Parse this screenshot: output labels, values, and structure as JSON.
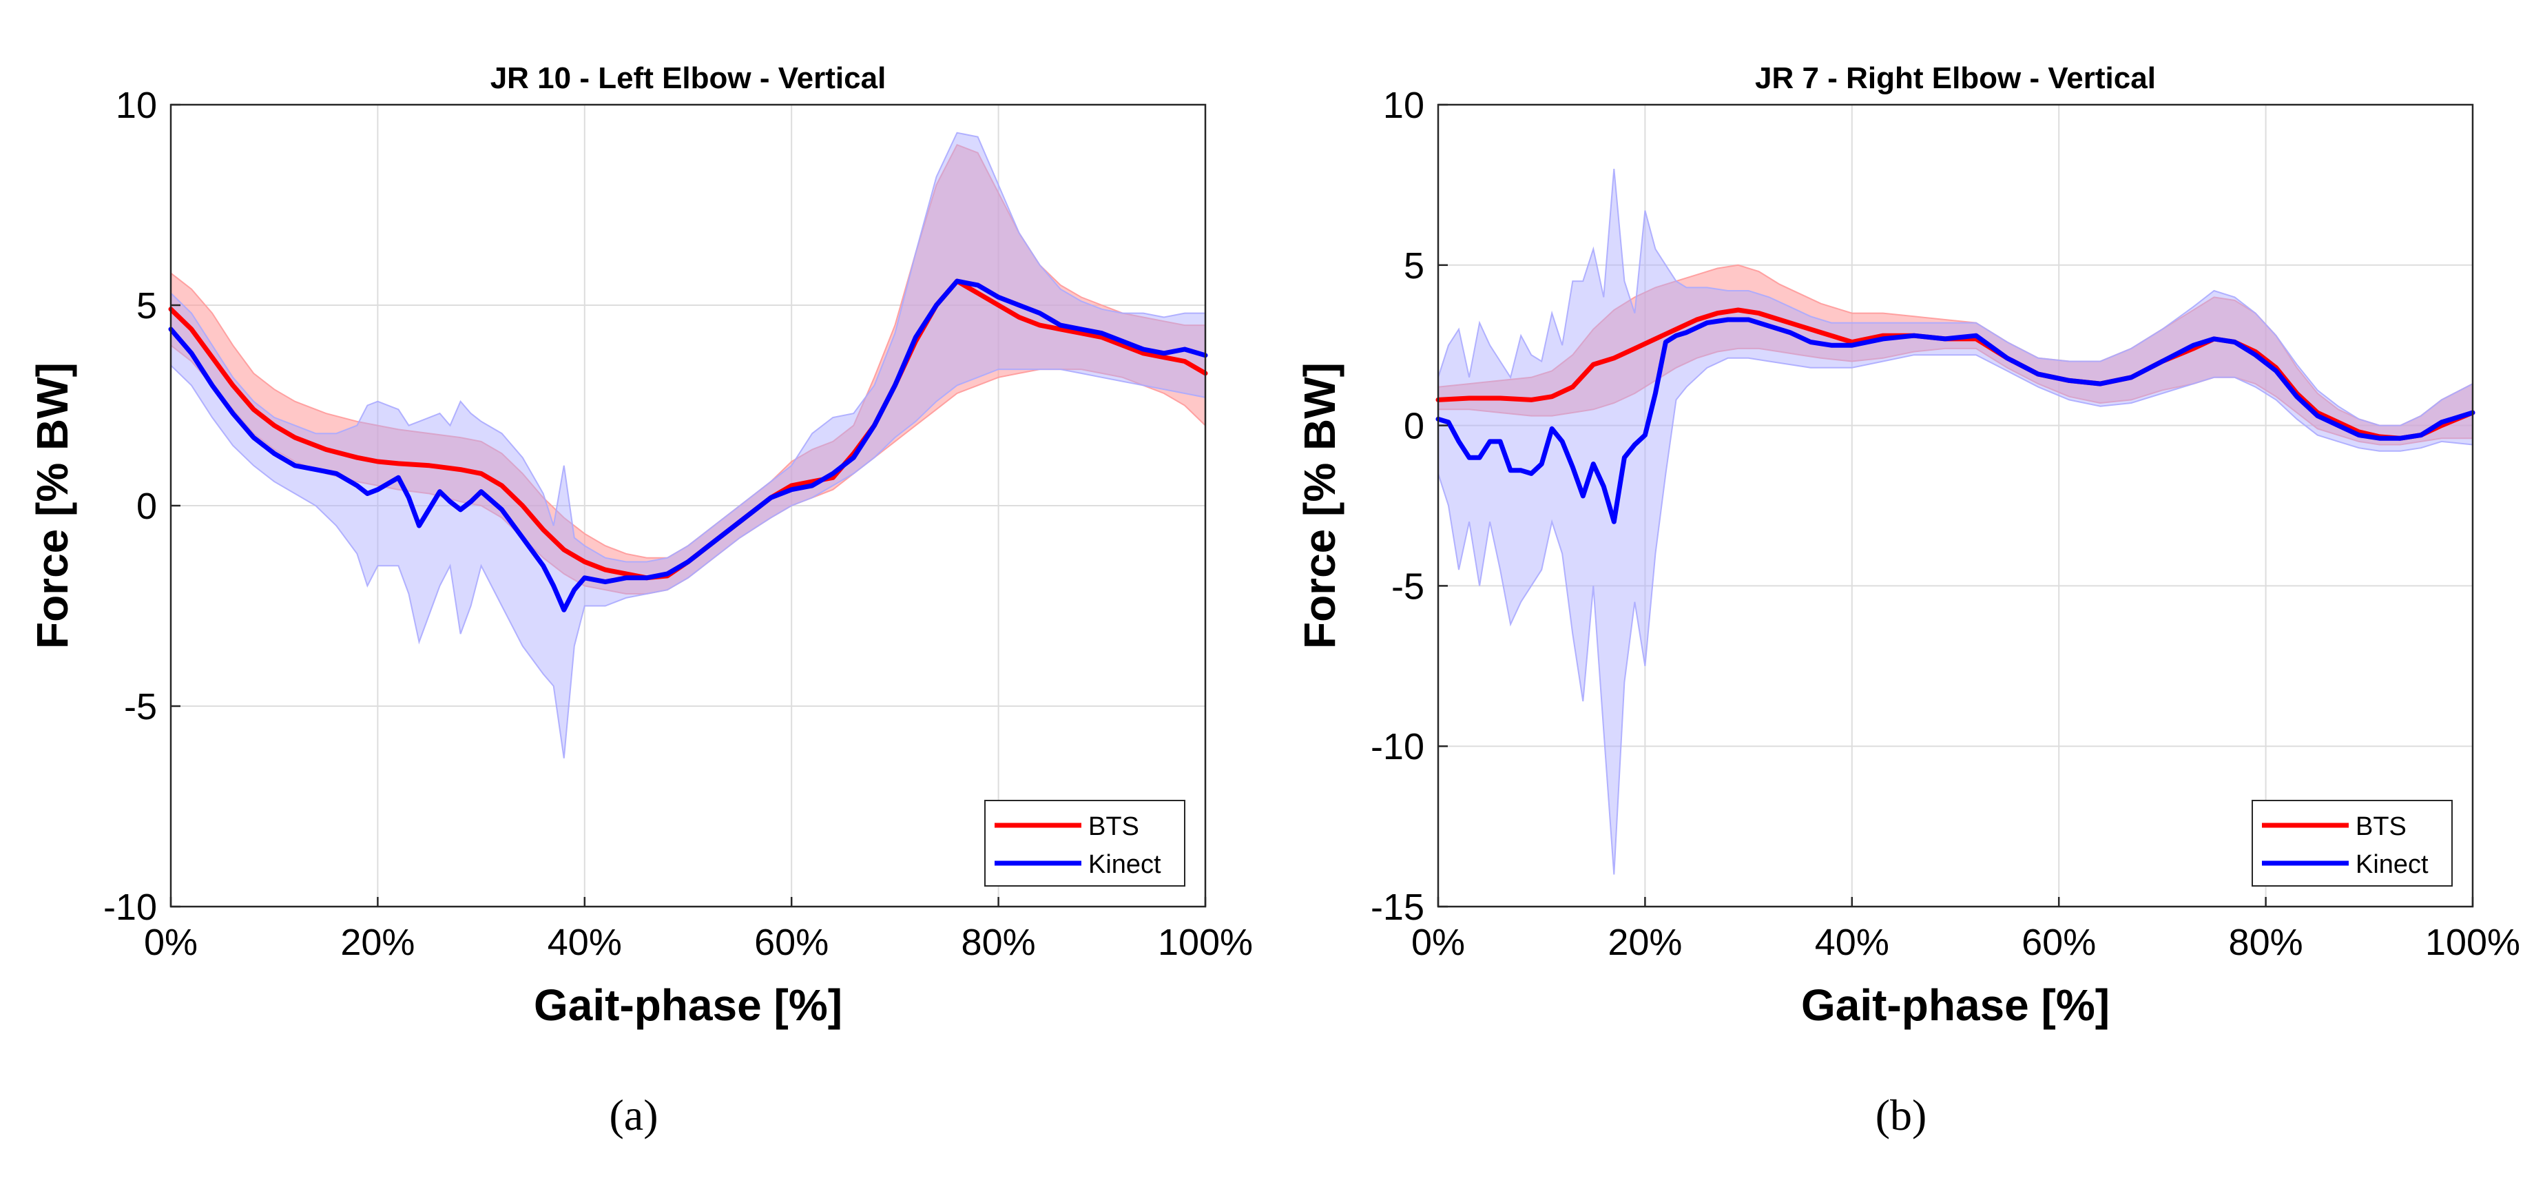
{
  "chart_data": [
    {
      "type": "line",
      "panel_label": "(a)",
      "title": "JR 10 - Left Elbow - Vertical",
      "xlabel": "Gait-phase [%]",
      "ylabel": "Force [% BW]",
      "xlim": [
        0,
        100
      ],
      "ylim": [
        -10,
        10
      ],
      "xticks": [
        0,
        20,
        40,
        60,
        80,
        100
      ],
      "xtick_labels": [
        "0%",
        "20%",
        "40%",
        "60%",
        "80%",
        "100%"
      ],
      "yticks": [
        -10,
        -5,
        0,
        5,
        10
      ],
      "ytick_labels": [
        "-10",
        "-5",
        "0",
        "5",
        "10"
      ],
      "grid": true,
      "legend_position": "bottom-right",
      "series": [
        {
          "name": "BTS",
          "color": "#ff0000",
          "band_color": "#ff9999",
          "x": [
            0,
            2,
            4,
            6,
            8,
            10,
            12,
            15,
            18,
            20,
            22,
            25,
            28,
            30,
            32,
            34,
            36,
            38,
            40,
            42,
            44,
            46,
            48,
            50,
            52,
            55,
            58,
            60,
            62,
            64,
            66,
            68,
            70,
            72,
            74,
            76,
            78,
            80,
            82,
            84,
            86,
            88,
            90,
            92,
            94,
            96,
            98,
            100
          ],
          "values": [
            4.9,
            4.4,
            3.7,
            3.0,
            2.4,
            2.0,
            1.7,
            1.4,
            1.2,
            1.1,
            1.05,
            1.0,
            0.9,
            0.8,
            0.5,
            0.0,
            -0.6,
            -1.1,
            -1.4,
            -1.6,
            -1.7,
            -1.8,
            -1.75,
            -1.4,
            -1.0,
            -0.4,
            0.2,
            0.5,
            0.6,
            0.7,
            1.3,
            2.0,
            3.0,
            4.1,
            5.0,
            5.6,
            5.3,
            5.0,
            4.7,
            4.5,
            4.4,
            4.3,
            4.2,
            4.0,
            3.8,
            3.7,
            3.6,
            3.3
          ],
          "lower": [
            4.0,
            3.6,
            3.0,
            2.4,
            1.8,
            1.4,
            1.1,
            0.8,
            0.6,
            0.5,
            0.4,
            0.3,
            0.1,
            0.0,
            -0.3,
            -0.8,
            -1.3,
            -1.7,
            -2.0,
            -2.1,
            -2.2,
            -2.2,
            -2.1,
            -1.8,
            -1.4,
            -0.8,
            -0.3,
            0.0,
            0.2,
            0.4,
            0.8,
            1.2,
            1.6,
            2.0,
            2.4,
            2.8,
            3.0,
            3.2,
            3.3,
            3.4,
            3.4,
            3.4,
            3.3,
            3.2,
            3.0,
            2.8,
            2.5,
            2.0
          ],
          "upper": [
            5.8,
            5.4,
            4.8,
            4.0,
            3.3,
            2.9,
            2.6,
            2.3,
            2.1,
            2.0,
            1.9,
            1.8,
            1.7,
            1.6,
            1.3,
            0.8,
            0.2,
            -0.3,
            -0.7,
            -1.0,
            -1.2,
            -1.3,
            -1.3,
            -1.0,
            -0.6,
            0.0,
            0.6,
            1.1,
            1.4,
            1.6,
            2.0,
            3.2,
            4.5,
            6.3,
            8.0,
            9.0,
            8.8,
            7.8,
            6.8,
            6.0,
            5.5,
            5.2,
            5.0,
            4.8,
            4.7,
            4.6,
            4.5,
            4.5
          ]
        },
        {
          "name": "Kinect",
          "color": "#0000ff",
          "band_color": "#aaaaff",
          "x": [
            0,
            2,
            4,
            6,
            8,
            10,
            12,
            14,
            16,
            18,
            19,
            20,
            22,
            23,
            24,
            26,
            27,
            28,
            29,
            30,
            32,
            34,
            36,
            37,
            38,
            39,
            40,
            42,
            44,
            46,
            48,
            50,
            52,
            55,
            58,
            60,
            62,
            64,
            66,
            68,
            70,
            72,
            74,
            76,
            78,
            80,
            82,
            84,
            86,
            88,
            90,
            92,
            94,
            96,
            98,
            100
          ],
          "values": [
            4.4,
            3.8,
            3.0,
            2.3,
            1.7,
            1.3,
            1.0,
            0.9,
            0.8,
            0.5,
            0.3,
            0.4,
            0.7,
            0.2,
            -0.5,
            0.35,
            0.1,
            -0.1,
            0.1,
            0.35,
            -0.1,
            -0.8,
            -1.5,
            -2.0,
            -2.6,
            -2.1,
            -1.8,
            -1.9,
            -1.8,
            -1.8,
            -1.7,
            -1.4,
            -1.0,
            -0.4,
            0.2,
            0.4,
            0.5,
            0.8,
            1.2,
            2.0,
            3.0,
            4.2,
            5.0,
            5.6,
            5.5,
            5.2,
            5.0,
            4.8,
            4.5,
            4.4,
            4.3,
            4.1,
            3.9,
            3.8,
            3.9,
            3.75
          ],
          "lower": [
            3.5,
            3.0,
            2.2,
            1.5,
            1.0,
            0.6,
            0.3,
            0.0,
            -0.5,
            -1.2,
            -2.0,
            -1.5,
            -1.5,
            -2.2,
            -3.4,
            -2.0,
            -1.5,
            -3.2,
            -2.5,
            -1.5,
            -2.5,
            -3.5,
            -4.2,
            -4.5,
            -6.3,
            -3.5,
            -2.5,
            -2.5,
            -2.3,
            -2.2,
            -2.1,
            -1.8,
            -1.4,
            -0.8,
            -0.3,
            0.0,
            0.2,
            0.5,
            0.8,
            1.2,
            1.7,
            2.1,
            2.6,
            3.0,
            3.2,
            3.4,
            3.4,
            3.4,
            3.4,
            3.3,
            3.2,
            3.1,
            3.0,
            2.9,
            2.8,
            2.7
          ],
          "upper": [
            5.3,
            4.8,
            4.0,
            3.2,
            2.6,
            2.2,
            2.0,
            1.8,
            1.8,
            2.0,
            2.5,
            2.6,
            2.4,
            2.0,
            2.1,
            2.3,
            2.0,
            2.6,
            2.3,
            2.1,
            1.8,
            1.2,
            0.3,
            -0.5,
            1.0,
            -0.8,
            -1.0,
            -1.3,
            -1.4,
            -1.4,
            -1.3,
            -1.0,
            -0.6,
            0.0,
            0.6,
            1.0,
            1.8,
            2.2,
            2.3,
            3.0,
            4.3,
            6.3,
            8.2,
            9.3,
            9.2,
            8.0,
            6.8,
            6.0,
            5.4,
            5.1,
            4.9,
            4.8,
            4.8,
            4.7,
            4.8,
            4.8
          ]
        }
      ]
    },
    {
      "type": "line",
      "panel_label": "(b)",
      "title": "JR 7 - Right Elbow - Vertical",
      "xlabel": "Gait-phase [%]",
      "ylabel": "Force [% BW]",
      "xlim": [
        0,
        100
      ],
      "ylim": [
        -15,
        10
      ],
      "xticks": [
        0,
        20,
        40,
        60,
        80,
        100
      ],
      "xtick_labels": [
        "0%",
        "20%",
        "40%",
        "60%",
        "80%",
        "100%"
      ],
      "yticks": [
        -15,
        -10,
        -5,
        0,
        5,
        10
      ],
      "ytick_labels": [
        "-15",
        "-10",
        "-5",
        "0",
        "5",
        "10"
      ],
      "grid": true,
      "legend_position": "bottom-right",
      "series": [
        {
          "name": "BTS",
          "color": "#ff0000",
          "band_color": "#ff9999",
          "x": [
            0,
            3,
            6,
            9,
            11,
            13,
            15,
            17,
            19,
            21,
            23,
            25,
            27,
            29,
            31,
            33,
            35,
            37,
            40,
            43,
            46,
            49,
            52,
            55,
            58,
            61,
            64,
            67,
            70,
            73,
            75,
            77,
            79,
            81,
            83,
            85,
            87,
            89,
            91,
            93,
            95,
            97,
            100
          ],
          "values": [
            0.8,
            0.85,
            0.85,
            0.8,
            0.9,
            1.2,
            1.9,
            2.1,
            2.4,
            2.7,
            3.0,
            3.3,
            3.5,
            3.6,
            3.5,
            3.3,
            3.1,
            2.9,
            2.6,
            2.8,
            2.8,
            2.7,
            2.7,
            2.1,
            1.6,
            1.4,
            1.3,
            1.5,
            2.0,
            2.4,
            2.7,
            2.6,
            2.3,
            1.8,
            1.0,
            0.4,
            0.1,
            -0.2,
            -0.35,
            -0.4,
            -0.3,
            0.0,
            0.4
          ],
          "lower": [
            0.5,
            0.5,
            0.4,
            0.3,
            0.3,
            0.4,
            0.5,
            0.7,
            1.0,
            1.4,
            1.8,
            2.1,
            2.3,
            2.4,
            2.4,
            2.3,
            2.2,
            2.1,
            2.0,
            2.1,
            2.3,
            2.4,
            2.4,
            1.8,
            1.3,
            0.9,
            0.7,
            0.8,
            1.1,
            1.3,
            1.5,
            1.5,
            1.3,
            0.9,
            0.4,
            -0.1,
            -0.3,
            -0.5,
            -0.6,
            -0.6,
            -0.5,
            -0.4,
            -0.4
          ],
          "upper": [
            1.2,
            1.3,
            1.4,
            1.5,
            1.7,
            2.2,
            3.0,
            3.6,
            4.0,
            4.3,
            4.5,
            4.7,
            4.9,
            5.0,
            4.8,
            4.4,
            4.1,
            3.8,
            3.5,
            3.5,
            3.4,
            3.3,
            3.2,
            2.6,
            2.1,
            2.0,
            2.0,
            2.4,
            3.0,
            3.6,
            4.0,
            3.9,
            3.5,
            2.8,
            1.8,
            1.0,
            0.5,
            0.2,
            0.0,
            0.0,
            0.3,
            0.8,
            1.3
          ]
        },
        {
          "name": "Kinect",
          "color": "#0000ff",
          "band_color": "#aaaaff",
          "x": [
            0,
            1,
            2,
            3,
            4,
            5,
            6,
            7,
            8,
            9,
            10,
            11,
            12,
            13,
            14,
            15,
            16,
            17,
            18,
            19,
            20,
            21,
            22,
            23,
            24,
            26,
            28,
            30,
            32,
            34,
            36,
            38,
            40,
            43,
            46,
            49,
            52,
            55,
            58,
            61,
            64,
            67,
            70,
            73,
            75,
            77,
            79,
            81,
            83,
            85,
            87,
            89,
            91,
            93,
            95,
            97,
            100
          ],
          "values": [
            0.2,
            0.1,
            -0.5,
            -1.0,
            -1.0,
            -0.5,
            -0.5,
            -1.4,
            -1.4,
            -1.5,
            -1.2,
            -0.1,
            -0.5,
            -1.3,
            -2.2,
            -1.2,
            -1.9,
            -3.0,
            -1.0,
            -0.6,
            -0.3,
            1.0,
            2.6,
            2.8,
            2.9,
            3.2,
            3.3,
            3.3,
            3.1,
            2.9,
            2.6,
            2.5,
            2.5,
            2.7,
            2.8,
            2.7,
            2.8,
            2.1,
            1.6,
            1.4,
            1.3,
            1.5,
            2.0,
            2.5,
            2.7,
            2.6,
            2.2,
            1.7,
            0.9,
            0.3,
            0.0,
            -0.3,
            -0.4,
            -0.4,
            -0.3,
            0.1,
            0.4
          ],
          "lower": [
            -1.5,
            -2.5,
            -4.5,
            -3.0,
            -5.0,
            -3.0,
            -4.5,
            -6.2,
            -5.5,
            -5.0,
            -4.5,
            -3.0,
            -4.0,
            -6.5,
            -8.6,
            -5.0,
            -9.5,
            -14.0,
            -8.0,
            -5.5,
            -7.5,
            -4.0,
            -1.5,
            0.8,
            1.2,
            1.8,
            2.1,
            2.1,
            2.0,
            1.9,
            1.8,
            1.8,
            1.8,
            2.0,
            2.2,
            2.2,
            2.2,
            1.7,
            1.2,
            0.8,
            0.6,
            0.7,
            1.0,
            1.3,
            1.5,
            1.5,
            1.2,
            0.8,
            0.2,
            -0.3,
            -0.5,
            -0.7,
            -0.8,
            -0.8,
            -0.7,
            -0.5,
            -0.6
          ],
          "upper": [
            1.5,
            2.5,
            3.0,
            1.5,
            3.2,
            2.5,
            2.0,
            1.5,
            2.8,
            2.2,
            2.0,
            3.5,
            2.5,
            4.5,
            4.5,
            5.5,
            4.0,
            8.0,
            4.5,
            3.5,
            6.7,
            5.5,
            5.0,
            4.5,
            4.3,
            4.3,
            4.2,
            4.2,
            4.0,
            3.7,
            3.4,
            3.2,
            3.2,
            3.2,
            3.2,
            3.2,
            3.2,
            2.6,
            2.1,
            2.0,
            2.0,
            2.4,
            3.0,
            3.7,
            4.2,
            4.0,
            3.5,
            2.8,
            1.9,
            1.1,
            0.6,
            0.2,
            0.0,
            0.0,
            0.3,
            0.8,
            1.3
          ]
        }
      ]
    }
  ]
}
